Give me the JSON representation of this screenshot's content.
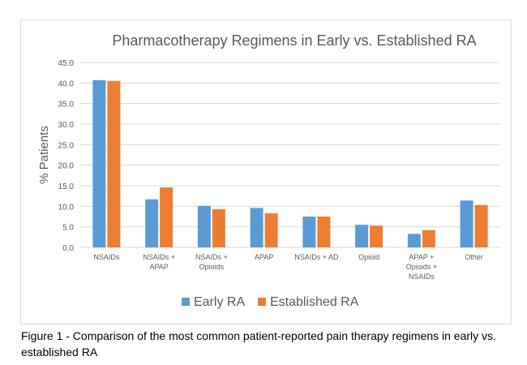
{
  "caption": "Figure 1 - Comparison of the most common patient-reported pain therapy regimens in early vs. established RA",
  "colors": {
    "early": "#5b9bd5",
    "established": "#ed7d31",
    "grid": "#d9d9d9",
    "text": "#595959"
  },
  "chart_data": {
    "type": "bar",
    "title": "Pharmacotherapy  Regimens  in Early vs. Established RA",
    "ylabel": "% Patients",
    "xlabel": "",
    "ylim": [
      0,
      45
    ],
    "yticks": [
      "0.0",
      "5.0",
      "10.0",
      "15.0",
      "20.0",
      "25.0",
      "30.0",
      "35.0",
      "40.0",
      "45.0"
    ],
    "categories": [
      [
        "NSAIDs"
      ],
      [
        "NSAIDs +",
        "APAP"
      ],
      [
        "NSAIDs +",
        "Opioids"
      ],
      [
        "APAP"
      ],
      [
        "NSAIDs + AD"
      ],
      [
        "Opioid"
      ],
      [
        "APAP +",
        "Opioids +",
        "NSAIDs"
      ],
      [
        "Other"
      ]
    ],
    "series": [
      {
        "name": "Early RA",
        "values": [
          40.7,
          11.7,
          10.1,
          9.6,
          7.5,
          5.5,
          3.3,
          11.4
        ]
      },
      {
        "name": "Established RA",
        "values": [
          40.5,
          14.6,
          9.3,
          8.3,
          7.5,
          5.3,
          4.2,
          10.3
        ]
      }
    ],
    "legend": "bottom",
    "grid": true
  }
}
